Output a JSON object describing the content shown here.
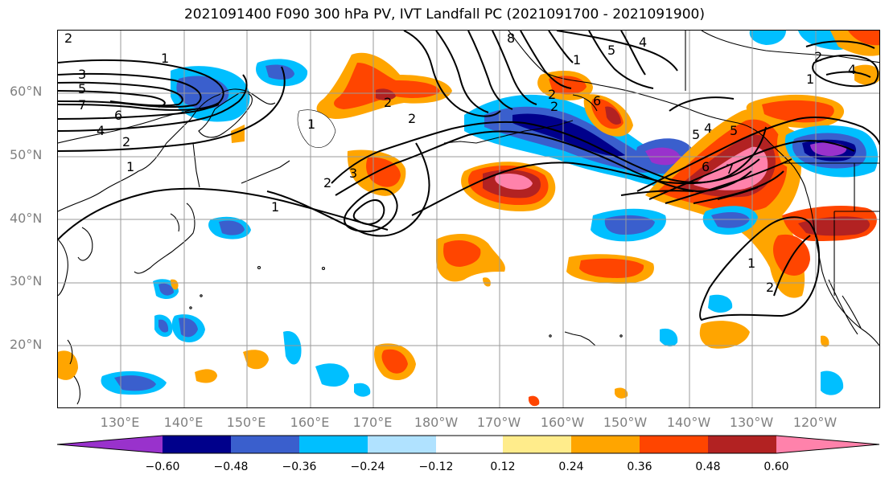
{
  "title": "2021091400 F090 300 hPa PV, IVT Landfall PC (2021091700 - 2021091900)",
  "lat_labels": [
    "60°N",
    "50°N",
    "40°N",
    "30°N",
    "20°N"
  ],
  "lon_labels": [
    "130°E",
    "140°E",
    "150°E",
    "160°E",
    "170°E",
    "180°W",
    "170°W",
    "160°W",
    "150°W",
    "140°W",
    "130°W",
    "120°W"
  ],
  "colorbar": {
    "colors": [
      "#9932CC",
      "#00008B",
      "#3A5FCD",
      "#00BFFF",
      "#B0E2FF",
      "#FFFFFF",
      "#FFEC8B",
      "#FFA500",
      "#FF4500",
      "#B22222",
      "#FF82AB"
    ],
    "tick_labels": [
      "−0.60",
      "−0.48",
      "−0.36",
      "−0.24",
      "−0.12",
      "0.12",
      "0.24",
      "0.36",
      "0.48",
      "0.60"
    ]
  },
  "contour_labels": [
    "2",
    "3",
    "5",
    "7",
    "4",
    "2",
    "1",
    "6",
    "1",
    "8",
    "1",
    "2",
    "1",
    "2",
    "3",
    "2",
    "1",
    "4",
    "5",
    "6",
    "2",
    "2",
    "5",
    "4",
    "5",
    "6",
    "7",
    "1",
    "2",
    "2",
    "1",
    "4"
  ]
}
